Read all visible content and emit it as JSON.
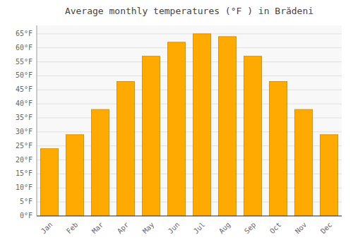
{
  "chart_data": {
    "type": "bar",
    "title": "Average monthly temperatures (°F ) in Brădeni",
    "categories": [
      "Jan",
      "Feb",
      "Mar",
      "Apr",
      "May",
      "Jun",
      "Jul",
      "Aug",
      "Sep",
      "Oct",
      "Nov",
      "Dec"
    ],
    "values": [
      24,
      29,
      38,
      48,
      57,
      62,
      65,
      64,
      57,
      48,
      38,
      29
    ],
    "color": "#FFAA00",
    "ylim": [
      0,
      68
    ],
    "yticks": [
      {
        "value": 0,
        "label": "0°F"
      },
      {
        "value": 5,
        "label": "5°F"
      },
      {
        "value": 10,
        "label": "10°F"
      },
      {
        "value": 15,
        "label": "15°F"
      },
      {
        "value": 20,
        "label": "20°F"
      },
      {
        "value": 25,
        "label": "25°F"
      },
      {
        "value": 30,
        "label": "30°F"
      },
      {
        "value": 35,
        "label": "35°F"
      },
      {
        "value": 40,
        "label": "40°F"
      },
      {
        "value": 45,
        "label": "45°F"
      },
      {
        "value": 50,
        "label": "50°F"
      },
      {
        "value": 55,
        "label": "55°F"
      },
      {
        "value": 60,
        "label": "60°F"
      },
      {
        "value": 65,
        "label": "65°F"
      }
    ],
    "grid": true
  }
}
